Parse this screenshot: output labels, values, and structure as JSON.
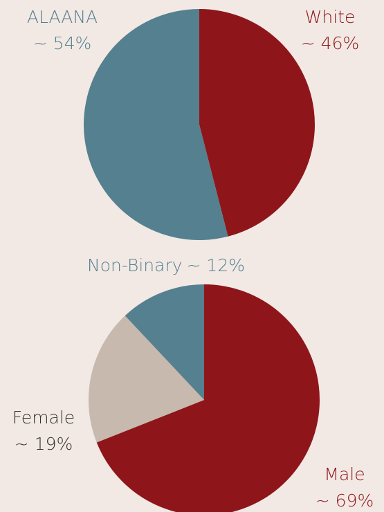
{
  "chart_data": [
    {
      "type": "pie",
      "categories": [
        "White",
        "ALAANA"
      ],
      "values": [
        46,
        54
      ],
      "value_labels": [
        "~ 46%",
        "~ 54%"
      ],
      "colors": [
        "#8e161a",
        "#55808f"
      ]
    },
    {
      "type": "pie",
      "categories": [
        "Male",
        "Female",
        "Non-Binary"
      ],
      "values": [
        69,
        19,
        12
      ],
      "value_labels": [
        "~ 69%",
        "~ 19%",
        "~ 12%"
      ],
      "colors": [
        "#8e161a",
        "#c7b9ad",
        "#55808f"
      ]
    }
  ]
}
